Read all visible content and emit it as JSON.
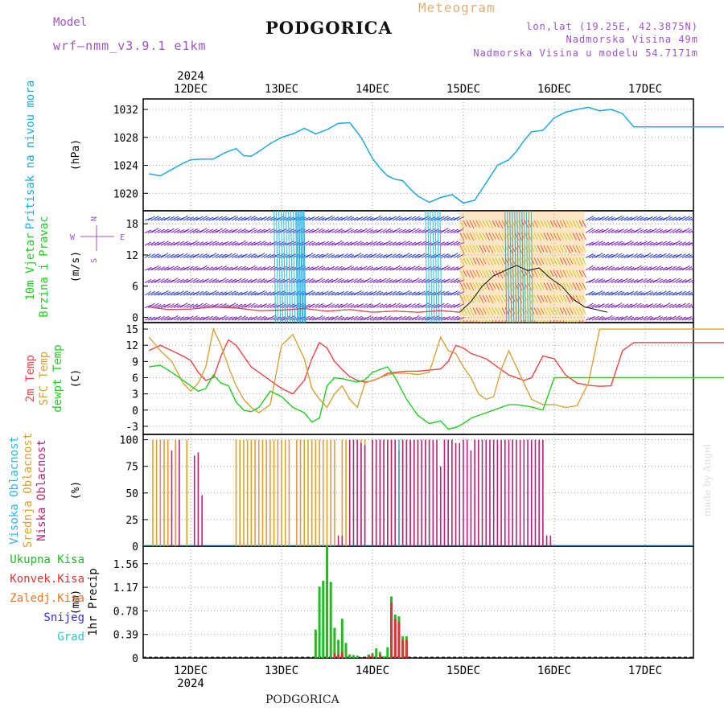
{
  "header": {
    "model_label": "Model",
    "model_name": "wrf–nmm_v3.9.1  e1km",
    "title": "PODGORICA",
    "meteogram_label": "Meteogram",
    "coords": "lon,lat (19.25E, 42.3875N)",
    "elevation": "Nadmorska Visina 49m",
    "model_elevation": "Nadmorska Visina u modelu 54.7171m",
    "footer_title": "PODGORICA",
    "watermark": "made by Angel"
  },
  "colors": {
    "pressure": "#1fa8e0",
    "temp2m": "#ee4444",
    "sfc": "#d8a23a",
    "dewpt": "#22cc22",
    "cloud_high": "#28b8e8",
    "cloud_mid": "#dda030",
    "cloud_low": "#bb2277",
    "wind_barbs": "#7a1fc8",
    "precip_total": "#22bb22",
    "precip_conv": "#dd3333",
    "precip_frozen": "#ee7722",
    "precip_snow": "#3333dd",
    "precip_hail": "#22cccc",
    "header_purple": "#9a55c8",
    "header_orange": "#e0b070"
  },
  "time_axis": {
    "top_year": "2024",
    "bottom_year": "2024",
    "days": [
      "12DEC",
      "13DEC",
      "14DEC",
      "15DEC",
      "16DEC",
      "17DEC"
    ]
  },
  "chart_data": [
    {
      "type": "line",
      "panel": "pressure",
      "ylabel_lines": [
        "Pritisak na nivou mora"
      ],
      "units": "(hPa)",
      "yticks": [
        "1020",
        "1024",
        "1028",
        "1032"
      ],
      "ylim": [
        1017.5,
        1033.5
      ],
      "x_hours": [
        -11,
        -8,
        -5,
        -2,
        0,
        3,
        6,
        9,
        12,
        14,
        16,
        18,
        21,
        24,
        27,
        30,
        33,
        36,
        39,
        42,
        45,
        48,
        50,
        52,
        54,
        56,
        58,
        60,
        63,
        66,
        69,
        72,
        75,
        78,
        81,
        84,
        86,
        88,
        90,
        93,
        96,
        99,
        102,
        105,
        108,
        111,
        114,
        117,
        120,
        123,
        126,
        129,
        132,
        135,
        138,
        141,
        144,
        147,
        150
      ],
      "series": [
        {
          "values": [
            1022.8,
            1022.5,
            1023.4,
            1024.3,
            1024.8,
            1024.9,
            1024.9,
            1025.8,
            1026.4,
            1025.4,
            1025.3,
            1026.0,
            1027.1,
            1028.0,
            1028.5,
            1029.3,
            1028.5,
            1029.1,
            1030.0,
            1030.1,
            1028.0,
            1025.0,
            1023.6,
            1022.5,
            1022.0,
            1021.8,
            1020.6,
            1019.6,
            1018.7,
            1019.4,
            1019.8,
            1018.6,
            1019.0,
            1021.5,
            1024.0,
            1024.8,
            1026.0,
            1027.5,
            1028.8,
            1029.0,
            1030.8,
            1031.6,
            1032.0,
            1032.3,
            1031.8,
            1032.0,
            1031.4,
            1029.5,
            1029.5,
            1029.5,
            1029.5,
            1029.5,
            1029.5,
            1029.5,
            1029.5,
            1029.5,
            1029.5,
            1029.5,
            1029.5
          ]
        }
      ]
    },
    {
      "type": "line",
      "panel": "wind",
      "ylabel_lines": [
        "10m Vjetar",
        "Brzina i Pravac"
      ],
      "units": "(m/s)",
      "yticks": [
        "0",
        "6",
        "12",
        "18"
      ],
      "ylim": [
        -1,
        20.5
      ],
      "compass": {
        "n": "N",
        "s": "S",
        "w": "W",
        "e": "E"
      },
      "x_hours": [
        -11,
        -6,
        0,
        6,
        12,
        18,
        24,
        30,
        36,
        42,
        48,
        54,
        60,
        66,
        71,
        74,
        77,
        80,
        83,
        86,
        89,
        92,
        95,
        98,
        101,
        104,
        107,
        110
      ],
      "series": [
        {
          "values": [
            2.0,
            1.5,
            1.6,
            2.0,
            1.8,
            1.3,
            1.4,
            1.7,
            1.2,
            1.5,
            1.0,
            1.2,
            1.0,
            1.3,
            1.0,
            3.0,
            6.0,
            8.0,
            9.0,
            10.0,
            9.0,
            9.5,
            7.5,
            6.0,
            3.5,
            2.0,
            1.5,
            1.0
          ]
        }
      ]
    },
    {
      "type": "line",
      "panel": "temperature",
      "ylabel_lines": [
        "2m Temp",
        "SFC Temp",
        "dewpt Temp"
      ],
      "units": "(C)",
      "yticks": [
        "-3",
        "0",
        "3",
        "6",
        "9",
        "12",
        "15"
      ],
      "ylim": [
        -4.5,
        16.2
      ],
      "x_hours": [
        -11,
        -8,
        -5,
        -2,
        0,
        2,
        4,
        6,
        8,
        10,
        12,
        14,
        16,
        18,
        21,
        24,
        27,
        30,
        32,
        34,
        36,
        38,
        40,
        42,
        44,
        46,
        48,
        50,
        52,
        54,
        57,
        60,
        63,
        66,
        68,
        70,
        72,
        74,
        76,
        78,
        80,
        82,
        84,
        86,
        88,
        90,
        93,
        96,
        99,
        102,
        105,
        108,
        111,
        114,
        117,
        120,
        123,
        126,
        129,
        132,
        135,
        138,
        141,
        144,
        147,
        150
      ],
      "series": [
        {
          "name": "2m Temp",
          "values": [
            11.0,
            12.0,
            11.0,
            10.0,
            9.2,
            7.0,
            5.5,
            6.0,
            10.0,
            13.0,
            12.0,
            10.0,
            8.0,
            7.0,
            5.5,
            4.0,
            3.0,
            5.5,
            9.5,
            12.5,
            11.5,
            9.0,
            7.5,
            6.2,
            5.5,
            5.2,
            5.4,
            6.0,
            6.8,
            7.0,
            7.2,
            7.2,
            7.4,
            7.6,
            9.0,
            12.0,
            11.5,
            10.5,
            10.0,
            9.5,
            8.5,
            7.5,
            6.5,
            6.0,
            5.5,
            6.0,
            10.0,
            9.5,
            6.5,
            5.0,
            4.6,
            4.4,
            4.5,
            11.0,
            12.5,
            12.5,
            12.5,
            12.5,
            12.5,
            12.5,
            12.5,
            12.5,
            12.5,
            12.5,
            12.5,
            12.5
          ]
        },
        {
          "name": "SFC Temp",
          "values": [
            13.5,
            11.0,
            9.0,
            5.0,
            3.5,
            5.0,
            8.0,
            15.0,
            12.0,
            8.0,
            4.5,
            2.0,
            0.5,
            -0.5,
            1.0,
            12.0,
            14.0,
            9.5,
            4.0,
            2.0,
            0.5,
            3.0,
            4.5,
            2.0,
            0.5,
            5.0,
            5.5,
            6.0,
            6.5,
            6.8,
            6.8,
            6.6,
            7.0,
            13.5,
            11.0,
            10.5,
            8.0,
            6.0,
            3.0,
            2.0,
            2.5,
            7.5,
            11.0,
            8.0,
            5.0,
            2.0,
            1.0,
            1.0,
            0.5,
            0.8,
            5.0,
            15.0,
            15.0,
            15.0,
            15.0,
            15.0,
            15.0,
            15.0,
            15.0,
            15.0,
            15.0,
            15.0,
            15.0,
            15.0,
            15.0,
            15.0
          ]
        },
        {
          "name": "dewpt Temp",
          "values": [
            8.0,
            8.3,
            7.0,
            5.5,
            4.5,
            3.5,
            4.0,
            6.5,
            5.0,
            4.5,
            1.5,
            0.0,
            -0.3,
            0.5,
            3.5,
            2.5,
            0.5,
            -0.5,
            -2.2,
            -1.5,
            4.5,
            6.0,
            5.8,
            5.5,
            5.2,
            5.6,
            7.0,
            7.5,
            8.0,
            6.0,
            2.0,
            -1.0,
            -2.5,
            -2.0,
            -3.5,
            -3.2,
            -2.5,
            -1.5,
            -1.0,
            -0.5,
            0.0,
            0.5,
            1.0,
            1.0,
            0.8,
            0.6,
            0.0,
            6.0,
            6.0,
            6.0,
            6.0,
            6.0,
            6.0,
            6.0,
            6.0,
            6.0,
            6.0,
            6.0,
            6.0,
            6.0,
            6.0,
            6.0,
            6.0,
            6.0,
            6.0,
            6.0
          ]
        }
      ]
    },
    {
      "type": "bar",
      "panel": "clouds",
      "ylabel_lines": [
        "Visoka Oblacnost",
        "Srednja Oblacnost",
        "Niska Oblacnost"
      ],
      "units": "(%)",
      "yticks": [
        "0",
        "25",
        "50",
        "75",
        "100"
      ],
      "ylim": [
        0,
        105
      ],
      "series": [
        {
          "name": "Srednja Oblacnost",
          "hours": [
            -10,
            -9,
            -8,
            -7,
            -6,
            -4,
            -1,
            12,
            13,
            14,
            15,
            16,
            17,
            18,
            19,
            20,
            21,
            22,
            23,
            24,
            25,
            26,
            28,
            29,
            30,
            31,
            32,
            33,
            34,
            35,
            36,
            37,
            38,
            40,
            41,
            45,
            46,
            48,
            49,
            50,
            51,
            52,
            53,
            54,
            56,
            57,
            58,
            59,
            60,
            62,
            63
          ],
          "values": [
            100,
            100,
            100,
            100,
            100,
            100,
            100,
            100,
            100,
            100,
            100,
            100,
            100,
            100,
            100,
            100,
            100,
            100,
            100,
            100,
            100,
            100,
            100,
            100,
            100,
            100,
            100,
            100,
            100,
            100,
            100,
            100,
            100,
            100,
            100,
            100,
            100,
            100,
            100,
            100,
            100,
            100,
            100,
            100,
            100,
            100,
            100,
            100,
            100,
            100,
            100
          ]
        },
        {
          "name": "Niska Oblacnost",
          "hours": [
            -5,
            -3,
            1,
            2,
            3,
            39,
            40,
            42,
            43,
            44,
            45,
            46,
            48,
            49,
            50,
            51,
            52,
            53,
            54,
            55,
            56,
            57,
            58,
            59,
            60,
            61,
            62,
            63,
            64,
            65,
            66,
            67,
            68,
            69,
            70,
            71,
            72,
            73,
            74,
            75,
            76,
            77,
            78,
            79,
            80,
            81,
            82,
            83,
            84,
            85,
            86,
            87,
            88,
            89,
            90,
            91,
            92,
            93,
            94,
            95
          ],
          "values": [
            90,
            100,
            85,
            88,
            48,
            10,
            10,
            100,
            100,
            100,
            97,
            95,
            100,
            100,
            100,
            100,
            100,
            100,
            100,
            90,
            100,
            100,
            100,
            100,
            100,
            100,
            100,
            100,
            100,
            100,
            75,
            100,
            100,
            100,
            97,
            97,
            100,
            100,
            90,
            100,
            100,
            100,
            100,
            100,
            100,
            100,
            100,
            100,
            100,
            100,
            100,
            100,
            100,
            100,
            100,
            100,
            100,
            100,
            10,
            10
          ]
        },
        {
          "name": "Visoka Oblacnost",
          "hours": [
            55
          ],
          "values": [
            100
          ]
        }
      ]
    },
    {
      "type": "bar",
      "panel": "precipitation",
      "ylabel_lines": [
        "1hr Precip"
      ],
      "units": "(mm)",
      "yticks": [
        "0",
        "0.39",
        "0.78",
        "1.17",
        "1.56"
      ],
      "ylim": [
        0,
        1.85
      ],
      "legend": [
        "Ukupna Kisa",
        "Konvek.Kisa",
        "Zaledj.Kisa",
        "Snijeg",
        "Grad"
      ],
      "series": [
        {
          "name": "Ukupna Kisa",
          "hours": [
            33,
            34,
            35,
            36,
            37,
            38,
            39,
            40,
            41,
            42,
            43,
            44,
            47,
            48,
            49,
            50,
            51,
            52,
            53,
            54,
            55,
            56,
            57
          ],
          "values": [
            0.47,
            1.18,
            1.28,
            1.85,
            1.26,
            0.5,
            0.3,
            0.65,
            0.25,
            0.06,
            0.05,
            0.04,
            0.06,
            0.08,
            0.16,
            0.1,
            0.03,
            0.18,
            1.02,
            0.72,
            0.69,
            0.36,
            0.36
          ]
        },
        {
          "name": "Konvek.Kisa",
          "hours": [
            38,
            39,
            40,
            47,
            48,
            50,
            53,
            54,
            55,
            56,
            57
          ],
          "values": [
            0.08,
            0.06,
            0.1,
            0.04,
            0.05,
            0.06,
            0.92,
            0.65,
            0.6,
            0.3,
            0.3
          ]
        }
      ]
    }
  ]
}
